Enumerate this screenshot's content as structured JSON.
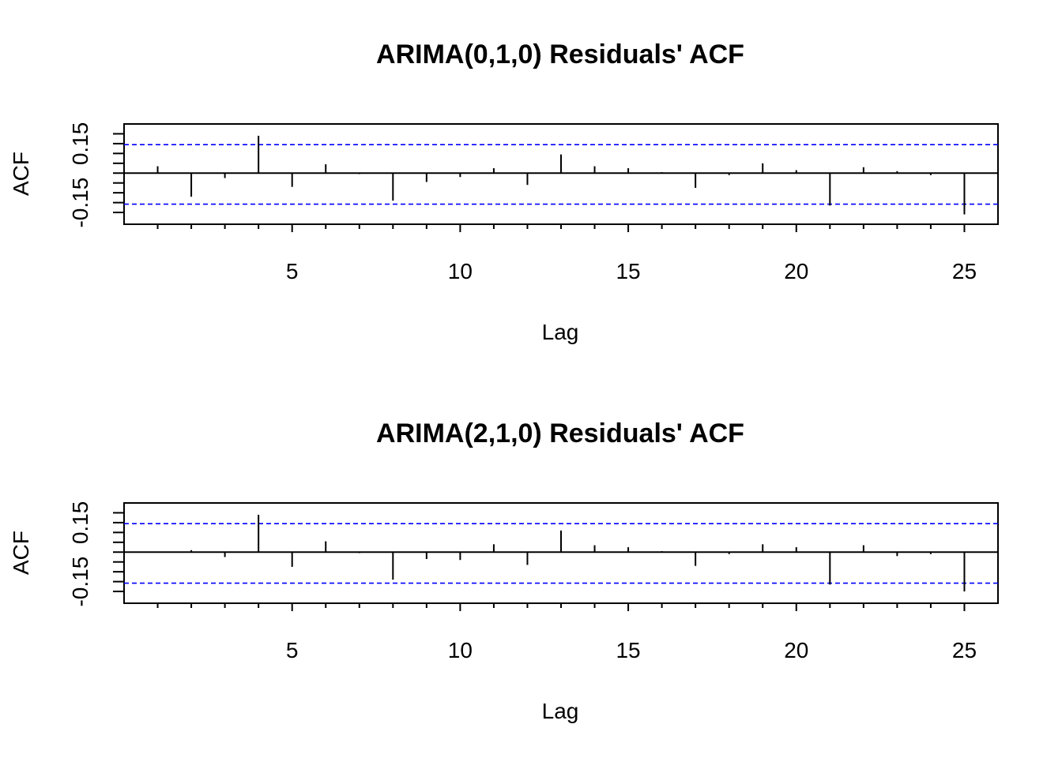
{
  "chart_data": [
    {
      "type": "bar",
      "title": "ARIMA(0,1,0) Residuals' ACF",
      "xlabel": "Lag",
      "ylabel": "ACF",
      "x_ticks": [
        5,
        10,
        15,
        20,
        25
      ],
      "y_ticks": [
        "0.15",
        "-0.15"
      ],
      "y_tick_values": [
        0.15,
        -0.15
      ],
      "xlim": [
        0,
        26
      ],
      "ylim": [
        -0.26,
        0.25
      ],
      "confidence_band": [
        0.145,
        -0.158
      ],
      "confidence_color": "#0000ff",
      "lags": [
        1,
        2,
        3,
        4,
        5,
        6,
        7,
        8,
        9,
        10,
        11,
        12,
        13,
        14,
        15,
        16,
        17,
        18,
        19,
        20,
        21,
        22,
        23,
        24,
        25
      ],
      "values": [
        0.035,
        -0.12,
        -0.025,
        0.19,
        -0.07,
        0.045,
        -0.005,
        -0.14,
        -0.045,
        -0.02,
        0.025,
        -0.06,
        0.095,
        0.035,
        0.025,
        0.005,
        -0.075,
        -0.01,
        0.05,
        0.015,
        -0.165,
        0.03,
        0.01,
        -0.01,
        -0.21
      ]
    },
    {
      "type": "bar",
      "title": "ARIMA(2,1,0) Residuals' ACF",
      "xlabel": "Lag",
      "ylabel": "ACF",
      "x_ticks": [
        5,
        10,
        15,
        20,
        25
      ],
      "y_ticks": [
        "0.15",
        "-0.15"
      ],
      "y_tick_values": [
        0.15,
        -0.15
      ],
      "xlim": [
        0,
        26
      ],
      "ylim": [
        -0.26,
        0.25
      ],
      "confidence_band": [
        0.145,
        -0.158
      ],
      "confidence_color": "#0000ff",
      "lags": [
        1,
        2,
        3,
        4,
        5,
        6,
        7,
        8,
        9,
        10,
        11,
        12,
        13,
        14,
        15,
        16,
        17,
        18,
        19,
        20,
        21,
        22,
        23,
        24,
        25
      ],
      "values": [
        0.0,
        0.01,
        -0.025,
        0.19,
        -0.075,
        0.055,
        -0.005,
        -0.14,
        -0.035,
        -0.04,
        0.04,
        -0.065,
        0.11,
        0.035,
        0.025,
        0.005,
        -0.07,
        -0.01,
        0.04,
        0.025,
        -0.165,
        0.035,
        -0.02,
        -0.01,
        -0.2
      ]
    }
  ]
}
